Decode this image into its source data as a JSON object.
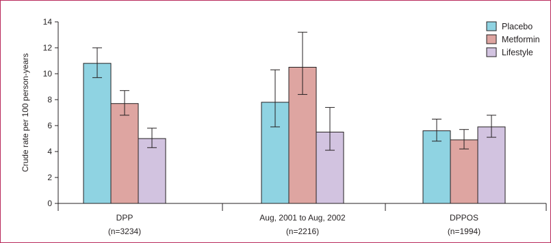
{
  "chart_data": {
    "type": "bar",
    "ylabel": "Crude rate per 100 person-years",
    "ylim": [
      0,
      14
    ],
    "yticks": [
      0,
      2,
      4,
      6,
      8,
      10,
      12,
      14
    ],
    "categories": [
      {
        "line1": "DPP",
        "line2": "(n=3234)"
      },
      {
        "line1": "Aug, 2001 to Aug, 2002",
        "line2": "(n=2216)"
      },
      {
        "line1": "DPPOS",
        "line2": "(n=1994)"
      }
    ],
    "series": [
      {
        "name": "Placebo",
        "color": "#8fd3e2",
        "values": [
          10.8,
          7.8,
          5.6
        ],
        "err_low": [
          9.7,
          5.9,
          4.8
        ],
        "err_high": [
          12.0,
          10.3,
          6.5
        ]
      },
      {
        "name": "Metformin",
        "color": "#dea5a1",
        "values": [
          7.7,
          10.5,
          4.9
        ],
        "err_low": [
          6.8,
          8.4,
          4.2
        ],
        "err_high": [
          8.7,
          13.2,
          5.7
        ]
      },
      {
        "name": "Lifestyle",
        "color": "#d2c3e0",
        "values": [
          5.0,
          5.5,
          5.9
        ],
        "err_low": [
          4.3,
          4.1,
          5.1
        ],
        "err_high": [
          5.8,
          7.4,
          6.8
        ]
      }
    ],
    "legend_position": "top-right",
    "grid": false
  }
}
